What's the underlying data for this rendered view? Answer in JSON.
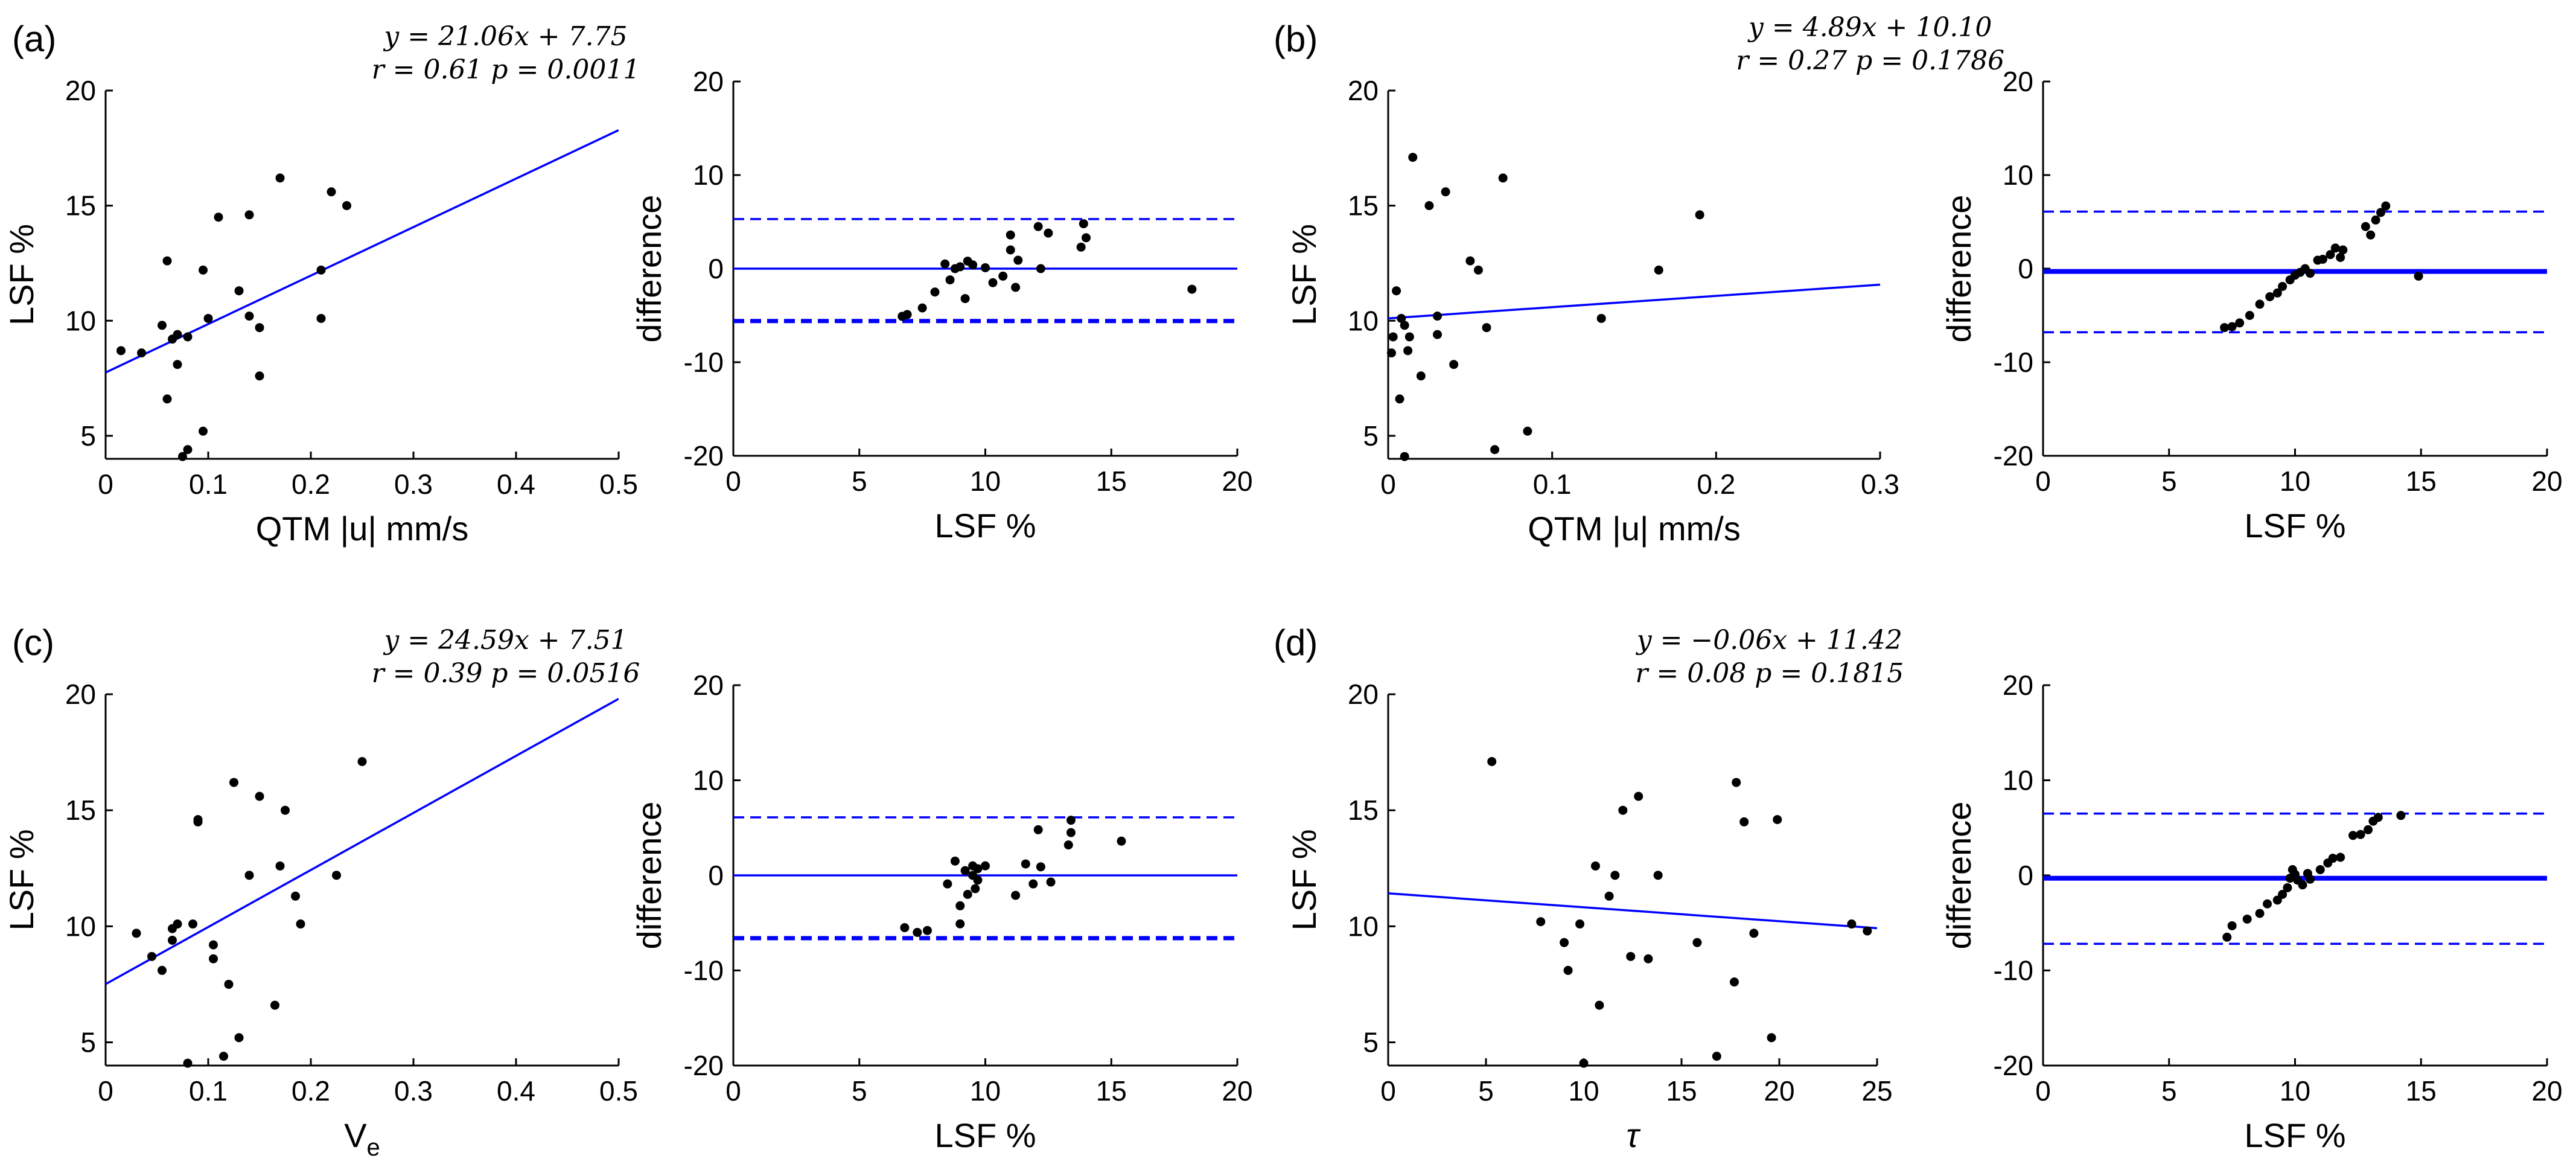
{
  "chart_data": [
    {
      "id": "a-scatter",
      "panel": "(a)",
      "type": "scatter",
      "xlabel": "QTM |u| mm/s",
      "ylabel": "LSF %",
      "xlim": [
        0,
        0.5
      ],
      "ylim": [
        4,
        20
      ],
      "xticks": [
        0,
        0.1,
        0.2,
        0.3,
        0.4,
        0.5
      ],
      "yticks": [
        5,
        10,
        15,
        20
      ],
      "xtick_labels": [
        "0",
        "0.1",
        "0.2",
        "0.3",
        "0.4",
        "0.5"
      ],
      "ytick_labels": [
        "5",
        "10",
        "15",
        "20"
      ],
      "equation": "y = 21.06x + 7.75",
      "stats": "r = 0.61 p = 0.0011",
      "fit": {
        "slope": 21.06,
        "intercept": 7.75
      },
      "points": [
        [
          0.015,
          8.7
        ],
        [
          0.035,
          8.6
        ],
        [
          0.055,
          9.8
        ],
        [
          0.06,
          6.6
        ],
        [
          0.06,
          12.6
        ],
        [
          0.065,
          9.2
        ],
        [
          0.07,
          9.4
        ],
        [
          0.07,
          8.1
        ],
        [
          0.075,
          4.1
        ],
        [
          0.08,
          4.4
        ],
        [
          0.08,
          9.3
        ],
        [
          0.095,
          5.2
        ],
        [
          0.095,
          12.2
        ],
        [
          0.1,
          10.1
        ],
        [
          0.11,
          14.5
        ],
        [
          0.13,
          11.3
        ],
        [
          0.14,
          14.6
        ],
        [
          0.14,
          10.2
        ],
        [
          0.15,
          9.7
        ],
        [
          0.15,
          7.6
        ],
        [
          0.17,
          16.2
        ],
        [
          0.21,
          10.1
        ],
        [
          0.21,
          12.2
        ],
        [
          0.22,
          15.6
        ],
        [
          0.235,
          15.0
        ]
      ]
    },
    {
      "id": "a-ba",
      "panel": "",
      "type": "scatter",
      "xlabel": "LSF %",
      "ylabel": "difference",
      "xlim": [
        0,
        20
      ],
      "ylim": [
        -20,
        20
      ],
      "xticks": [
        0,
        5,
        10,
        15,
        20
      ],
      "yticks": [
        -20,
        -10,
        0,
        10,
        20
      ],
      "xtick_labels": [
        "0",
        "5",
        "10",
        "15",
        "20"
      ],
      "ytick_labels": [
        "-20",
        "-10",
        "0",
        "10",
        "20"
      ],
      "mean_line": 0,
      "upper_limit": 5.3,
      "lower_limit": -5.6,
      "lower_thick": true,
      "points": [
        [
          6.7,
          -5.1
        ],
        [
          6.9,
          -4.9
        ],
        [
          7.5,
          -4.2
        ],
        [
          8.0,
          -2.5
        ],
        [
          8.4,
          0.5
        ],
        [
          8.6,
          -1.2
        ],
        [
          8.8,
          0.0
        ],
        [
          9.0,
          0.2
        ],
        [
          9.2,
          -3.2
        ],
        [
          9.3,
          0.8
        ],
        [
          9.5,
          0.4
        ],
        [
          10.0,
          0.1
        ],
        [
          10.3,
          -1.5
        ],
        [
          10.7,
          -0.8
        ],
        [
          11.0,
          2.0
        ],
        [
          11.0,
          3.6
        ],
        [
          11.2,
          -2.0
        ],
        [
          11.3,
          0.9
        ],
        [
          12.1,
          4.5
        ],
        [
          12.5,
          3.8
        ],
        [
          13.8,
          2.3
        ],
        [
          13.9,
          4.8
        ],
        [
          14.0,
          3.3
        ],
        [
          18.2,
          -2.2
        ],
        [
          12.2,
          0.0
        ]
      ]
    },
    {
      "id": "b-scatter",
      "panel": "(b)",
      "type": "scatter",
      "xlabel": "QTM |u| mm/s",
      "ylabel": "LSF %",
      "xlim": [
        0,
        0.3
      ],
      "ylim": [
        4,
        20
      ],
      "xticks": [
        0,
        0.1,
        0.2,
        0.3
      ],
      "yticks": [
        5,
        10,
        15,
        20
      ],
      "xtick_labels": [
        "0",
        "0.1",
        "0.2",
        "0.3"
      ],
      "ytick_labels": [
        "5",
        "10",
        "15",
        "20"
      ],
      "equation": "y = 4.89x + 10.10",
      "stats": "r = 0.27 p = 0.1786",
      "fit": {
        "slope": 4.89,
        "intercept": 10.1
      },
      "points": [
        [
          0.002,
          8.6
        ],
        [
          0.003,
          9.3
        ],
        [
          0.005,
          11.3
        ],
        [
          0.007,
          6.6
        ],
        [
          0.008,
          10.1
        ],
        [
          0.01,
          9.8
        ],
        [
          0.01,
          4.1
        ],
        [
          0.012,
          8.7
        ],
        [
          0.013,
          9.3
        ],
        [
          0.015,
          17.1
        ],
        [
          0.02,
          7.6
        ],
        [
          0.025,
          15.0
        ],
        [
          0.03,
          10.2
        ],
        [
          0.035,
          15.6
        ],
        [
          0.04,
          8.1
        ],
        [
          0.05,
          12.6
        ],
        [
          0.055,
          12.2
        ],
        [
          0.06,
          9.7
        ],
        [
          0.065,
          4.4
        ],
        [
          0.07,
          16.2
        ],
        [
          0.085,
          5.2
        ],
        [
          0.13,
          10.1
        ],
        [
          0.165,
          12.2
        ],
        [
          0.19,
          14.6
        ],
        [
          0.03,
          9.4
        ]
      ]
    },
    {
      "id": "b-ba",
      "panel": "",
      "type": "scatter",
      "xlabel": "LSF %",
      "ylabel": "difference",
      "xlim": [
        0,
        20
      ],
      "ylim": [
        -20,
        20
      ],
      "xticks": [
        0,
        5,
        10,
        15,
        20
      ],
      "yticks": [
        -20,
        -10,
        0,
        10,
        20
      ],
      "xtick_labels": [
        "0",
        "5",
        "10",
        "15",
        "20"
      ],
      "ytick_labels": [
        "-20",
        "-10",
        "0",
        "10",
        "20"
      ],
      "mean_line": -0.3,
      "upper_limit": 6.1,
      "lower_limit": -6.8,
      "mean_thick": true,
      "points": [
        [
          7.2,
          -6.3
        ],
        [
          7.5,
          -6.2
        ],
        [
          7.8,
          -5.8
        ],
        [
          8.2,
          -5.0
        ],
        [
          8.6,
          -3.8
        ],
        [
          9.0,
          -3.0
        ],
        [
          9.3,
          -2.6
        ],
        [
          9.5,
          -1.9
        ],
        [
          9.8,
          -1.2
        ],
        [
          10.0,
          -0.7
        ],
        [
          10.2,
          -0.4
        ],
        [
          10.4,
          0.0
        ],
        [
          10.6,
          -0.5
        ],
        [
          10.9,
          0.9
        ],
        [
          11.1,
          1.0
        ],
        [
          11.4,
          1.5
        ],
        [
          11.6,
          2.2
        ],
        [
          11.8,
          1.2
        ],
        [
          12.8,
          4.5
        ],
        [
          13.0,
          3.6
        ],
        [
          13.2,
          5.2
        ],
        [
          13.4,
          6.0
        ],
        [
          13.6,
          6.7
        ],
        [
          14.9,
          -0.8
        ],
        [
          11.9,
          2.0
        ]
      ]
    },
    {
      "id": "c-scatter",
      "panel": "(c)",
      "type": "scatter",
      "xlabel": "V_e",
      "xlabel_main": "V",
      "xlabel_sub": "e",
      "ylabel": "LSF %",
      "xlim": [
        0,
        0.5
      ],
      "ylim": [
        4,
        20
      ],
      "xticks": [
        0,
        0.1,
        0.2,
        0.3,
        0.4,
        0.5
      ],
      "yticks": [
        5,
        10,
        15,
        20
      ],
      "xtick_labels": [
        "0",
        "0.1",
        "0.2",
        "0.3",
        "0.4",
        "0.5"
      ],
      "ytick_labels": [
        "5",
        "10",
        "15",
        "20"
      ],
      "equation": "y = 24.59x + 7.51",
      "stats": "r = 0.39 p = 0.0516",
      "fit": {
        "slope": 24.59,
        "intercept": 7.51
      },
      "points": [
        [
          0.03,
          9.7
        ],
        [
          0.045,
          8.7
        ],
        [
          0.055,
          8.1
        ],
        [
          0.065,
          9.4
        ],
        [
          0.065,
          9.9
        ],
        [
          0.07,
          10.1
        ],
        [
          0.08,
          4.1
        ],
        [
          0.085,
          10.1
        ],
        [
          0.09,
          14.5
        ],
        [
          0.09,
          14.6
        ],
        [
          0.105,
          9.2
        ],
        [
          0.105,
          8.6
        ],
        [
          0.115,
          4.4
        ],
        [
          0.12,
          7.5
        ],
        [
          0.125,
          16.2
        ],
        [
          0.13,
          5.2
        ],
        [
          0.14,
          12.2
        ],
        [
          0.15,
          15.6
        ],
        [
          0.165,
          6.6
        ],
        [
          0.17,
          12.6
        ],
        [
          0.175,
          15.0
        ],
        [
          0.185,
          11.3
        ],
        [
          0.19,
          10.1
        ],
        [
          0.225,
          12.2
        ],
        [
          0.25,
          17.1
        ]
      ]
    },
    {
      "id": "c-ba",
      "panel": "",
      "type": "scatter",
      "xlabel": "LSF %",
      "ylabel": "difference",
      "xlim": [
        0,
        20
      ],
      "ylim": [
        -20,
        20
      ],
      "xticks": [
        0,
        5,
        10,
        15,
        20
      ],
      "yticks": [
        -20,
        -10,
        0,
        10,
        20
      ],
      "xtick_labels": [
        "0",
        "5",
        "10",
        "15",
        "20"
      ],
      "ytick_labels": [
        "-20",
        "-10",
        "0",
        "10",
        "20"
      ],
      "mean_line": 0,
      "upper_limit": 6.1,
      "lower_limit": -6.6,
      "lower_thick": true,
      "points": [
        [
          6.8,
          -5.5
        ],
        [
          7.3,
          -6.0
        ],
        [
          7.7,
          -5.8
        ],
        [
          8.5,
          -0.9
        ],
        [
          8.8,
          1.5
        ],
        [
          9.0,
          -5.1
        ],
        [
          9.0,
          -3.2
        ],
        [
          9.2,
          0.5
        ],
        [
          9.3,
          -2.0
        ],
        [
          9.5,
          1.0
        ],
        [
          9.5,
          0.0
        ],
        [
          9.7,
          0.7
        ],
        [
          9.7,
          -0.5
        ],
        [
          11.2,
          -2.1
        ],
        [
          11.6,
          1.2
        ],
        [
          11.9,
          -0.9
        ],
        [
          12.1,
          4.8
        ],
        [
          12.2,
          0.9
        ],
        [
          12.6,
          -0.7
        ],
        [
          13.3,
          3.2
        ],
        [
          13.4,
          4.5
        ],
        [
          13.4,
          5.8
        ],
        [
          15.4,
          3.6
        ],
        [
          9.6,
          -1.4
        ],
        [
          10.0,
          1.0
        ]
      ]
    },
    {
      "id": "d-scatter",
      "panel": "(d)",
      "type": "scatter",
      "xlabel": "τ",
      "ylabel": "LSF %",
      "xlim": [
        0,
        25
      ],
      "ylim": [
        4,
        20
      ],
      "xticks": [
        0,
        5,
        10,
        15,
        20,
        25
      ],
      "yticks": [
        5,
        10,
        15,
        20
      ],
      "xtick_labels": [
        "0",
        "5",
        "10",
        "15",
        "20",
        "25"
      ],
      "ytick_labels": [
        "5",
        "10",
        "15",
        "20"
      ],
      "equation": "y = −0.06x + 11.42",
      "stats": "r = 0.08 p = 0.1815",
      "fit": {
        "slope": -0.06,
        "intercept": 11.42
      },
      "points": [
        [
          5.3,
          17.1
        ],
        [
          7.8,
          10.2
        ],
        [
          9.0,
          9.3
        ],
        [
          9.2,
          8.1
        ],
        [
          9.8,
          10.1
        ],
        [
          10.0,
          4.1
        ],
        [
          10.6,
          12.6
        ],
        [
          10.8,
          6.6
        ],
        [
          11.3,
          11.3
        ],
        [
          11.6,
          12.2
        ],
        [
          12.0,
          15.0
        ],
        [
          12.4,
          8.7
        ],
        [
          12.8,
          15.6
        ],
        [
          13.3,
          8.6
        ],
        [
          13.8,
          12.2
        ],
        [
          15.8,
          9.3
        ],
        [
          16.8,
          4.4
        ],
        [
          17.7,
          7.6
        ],
        [
          17.8,
          16.2
        ],
        [
          18.2,
          14.5
        ],
        [
          18.7,
          9.7
        ],
        [
          19.6,
          5.2
        ],
        [
          19.9,
          14.6
        ],
        [
          23.7,
          10.1
        ],
        [
          24.5,
          9.8
        ]
      ]
    },
    {
      "id": "d-ba",
      "panel": "",
      "type": "scatter",
      "xlabel": "LSF %",
      "ylabel": "difference",
      "xlim": [
        0,
        20
      ],
      "ylim": [
        -20,
        20
      ],
      "xticks": [
        0,
        5,
        10,
        15,
        20
      ],
      "yticks": [
        -20,
        -10,
        0,
        10,
        20
      ],
      "xtick_labels": [
        "0",
        "5",
        "10",
        "15",
        "20"
      ],
      "ytick_labels": [
        "-20",
        "-10",
        "0",
        "10",
        "20"
      ],
      "mean_line": -0.3,
      "upper_limit": 6.5,
      "lower_limit": -7.2,
      "mean_thick": true,
      "points": [
        [
          7.3,
          -6.5
        ],
        [
          7.5,
          -5.3
        ],
        [
          8.1,
          -4.6
        ],
        [
          8.6,
          -4.0
        ],
        [
          8.9,
          -3.0
        ],
        [
          9.3,
          -2.6
        ],
        [
          9.5,
          -2.0
        ],
        [
          9.7,
          -1.3
        ],
        [
          9.8,
          -0.3
        ],
        [
          10.0,
          0.1
        ],
        [
          10.1,
          -0.5
        ],
        [
          10.3,
          -1.0
        ],
        [
          10.6,
          -0.4
        ],
        [
          11.0,
          0.6
        ],
        [
          11.3,
          1.3
        ],
        [
          11.5,
          1.8
        ],
        [
          11.8,
          1.9
        ],
        [
          12.3,
          4.2
        ],
        [
          12.6,
          4.3
        ],
        [
          12.9,
          4.8
        ],
        [
          13.1,
          5.7
        ],
        [
          13.3,
          6.1
        ],
        [
          14.2,
          6.3
        ],
        [
          9.9,
          0.6
        ],
        [
          10.5,
          0.2
        ]
      ]
    }
  ]
}
